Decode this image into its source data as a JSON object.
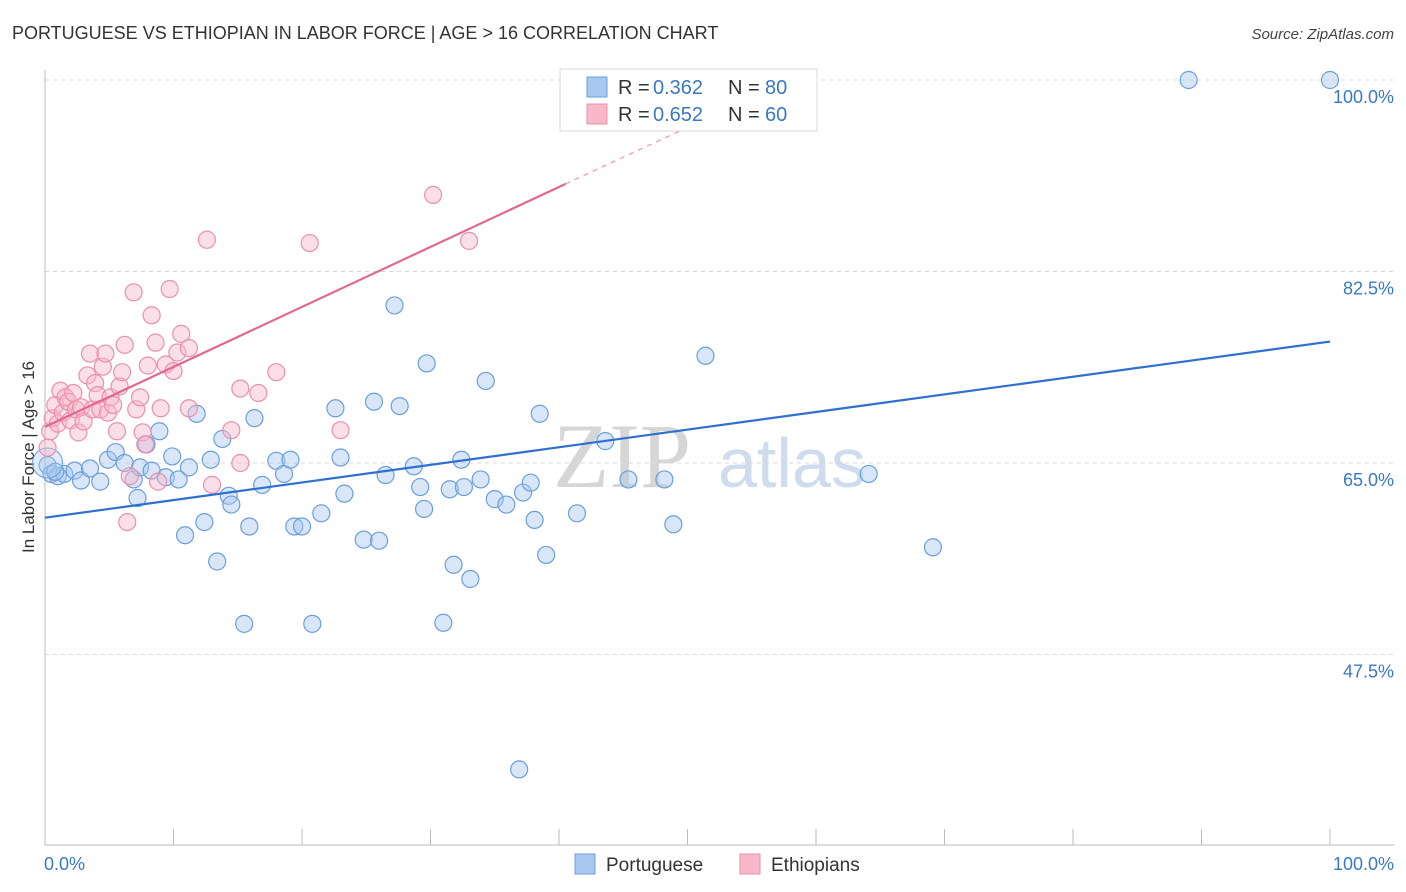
{
  "chart_data": {
    "type": "scatter",
    "title": "PORTUGUESE VS ETHIOPIAN IN LABOR FORCE | AGE > 16 CORRELATION CHART",
    "source": "Source: ZipAtlas.com",
    "xlabel": "",
    "ylabel": "In Labor Force | Age > 16",
    "xlim": [
      0,
      100
    ],
    "ylim": [
      30,
      102
    ],
    "x_tick_labels": [
      "0.0%",
      "100.0%"
    ],
    "y_ticks": [
      {
        "value": 100,
        "label": "100.0%"
      },
      {
        "value": 82.5,
        "label": "82.5%"
      },
      {
        "value": 65,
        "label": "65.0%"
      },
      {
        "value": 47.5,
        "label": "47.5%"
      }
    ],
    "watermark": {
      "zip": "ZIP",
      "atlas": "atlas"
    },
    "legend": {
      "r_label": "R =",
      "n_label": "N =",
      "entries": [
        {
          "name": "Portuguese",
          "r": "0.362",
          "n": "80"
        },
        {
          "name": "Ethiopians",
          "r": "0.652",
          "n": "60"
        }
      ]
    },
    "colors": {
      "portuguese_fill": "#a9c8f0",
      "portuguese_stroke": "#6a9fdb",
      "portuguese_line": "#2f6fce",
      "ethiopian_fill": "#f7b8cb",
      "ethiopian_stroke": "#ec8fab",
      "ethiopian_line": "#e2688f",
      "axis_blue": "#3b78c4"
    },
    "series": [
      {
        "name": "Portuguese",
        "trend": {
          "x0": 0,
          "y0": 60.0,
          "x1": 100,
          "y1": 76.1
        },
        "points": [
          [
            0.2,
            64.8
          ],
          [
            0.5,
            64.0
          ],
          [
            1.0,
            63.8
          ],
          [
            1.5,
            64.0
          ],
          [
            2.3,
            64.3
          ],
          [
            2.8,
            63.4
          ],
          [
            3.5,
            64.5
          ],
          [
            4.3,
            63.3
          ],
          [
            4.9,
            65.3
          ],
          [
            5.5,
            66.0
          ],
          [
            6.2,
            65.0
          ],
          [
            6.9,
            63.5
          ],
          [
            7.2,
            61.8
          ],
          [
            7.4,
            64.6
          ],
          [
            7.9,
            66.7
          ],
          [
            8.3,
            64.3
          ],
          [
            8.9,
            67.9
          ],
          [
            9.4,
            63.7
          ],
          [
            9.9,
            65.6
          ],
          [
            10.4,
            63.5
          ],
          [
            10.9,
            58.4
          ],
          [
            11.2,
            64.6
          ],
          [
            11.8,
            69.5
          ],
          [
            12.4,
            59.6
          ],
          [
            12.9,
            65.3
          ],
          [
            13.4,
            56.0
          ],
          [
            13.8,
            67.2
          ],
          [
            14.3,
            62.0
          ],
          [
            14.5,
            61.2
          ],
          [
            15.5,
            50.3
          ],
          [
            15.9,
            59.2
          ],
          [
            16.3,
            69.1
          ],
          [
            16.9,
            63.0
          ],
          [
            18.0,
            65.2
          ],
          [
            18.6,
            64.0
          ],
          [
            19.1,
            65.3
          ],
          [
            19.4,
            59.2
          ],
          [
            20.0,
            59.2
          ],
          [
            20.8,
            50.3
          ],
          [
            21.5,
            60.4
          ],
          [
            22.6,
            70.0
          ],
          [
            23.0,
            65.5
          ],
          [
            23.3,
            62.2
          ],
          [
            24.8,
            58.0
          ],
          [
            25.6,
            70.6
          ],
          [
            26.0,
            57.9
          ],
          [
            26.5,
            63.9
          ],
          [
            27.2,
            79.4
          ],
          [
            27.6,
            70.2
          ],
          [
            28.7,
            64.7
          ],
          [
            29.2,
            62.8
          ],
          [
            29.5,
            60.8
          ],
          [
            29.7,
            74.1
          ],
          [
            31.0,
            50.4
          ],
          [
            31.5,
            62.6
          ],
          [
            31.8,
            55.7
          ],
          [
            32.4,
            65.3
          ],
          [
            32.6,
            62.8
          ],
          [
            33.1,
            54.4
          ],
          [
            33.9,
            63.5
          ],
          [
            34.3,
            72.5
          ],
          [
            35.0,
            61.7
          ],
          [
            35.9,
            61.2
          ],
          [
            36.9,
            37.0
          ],
          [
            37.2,
            62.3
          ],
          [
            37.8,
            63.2
          ],
          [
            38.1,
            59.8
          ],
          [
            38.5,
            69.5
          ],
          [
            39.0,
            56.6
          ],
          [
            41.4,
            60.4
          ],
          [
            43.6,
            67.0
          ],
          [
            45.4,
            63.5
          ],
          [
            48.2,
            63.5
          ],
          [
            48.9,
            59.4
          ],
          [
            51.4,
            74.8
          ],
          [
            64.1,
            64.0
          ],
          [
            69.1,
            57.3
          ],
          [
            89.0,
            100.0
          ],
          [
            100.0,
            100.0
          ],
          [
            0.8,
            64.2
          ]
        ]
      },
      {
        "name": "Ethiopians",
        "trend": {
          "x0": 0,
          "y0": 68.3,
          "x1": 40.5,
          "y1": 90.5,
          "dash_to": {
            "x": 53.0,
            "y": 97.3
          }
        },
        "points": [
          [
            0.2,
            66.4
          ],
          [
            0.4,
            67.9
          ],
          [
            0.6,
            69.1
          ],
          [
            0.8,
            70.3
          ],
          [
            1.0,
            68.6
          ],
          [
            1.2,
            71.6
          ],
          [
            1.4,
            69.6
          ],
          [
            1.6,
            71.0
          ],
          [
            1.8,
            70.6
          ],
          [
            2.0,
            68.9
          ],
          [
            2.2,
            71.4
          ],
          [
            2.4,
            69.9
          ],
          [
            2.6,
            67.8
          ],
          [
            2.8,
            70.1
          ],
          [
            3.0,
            68.8
          ],
          [
            3.3,
            73.0
          ],
          [
            3.5,
            75.0
          ],
          [
            3.7,
            69.9
          ],
          [
            3.9,
            72.3
          ],
          [
            4.1,
            71.2
          ],
          [
            4.3,
            69.9
          ],
          [
            4.5,
            73.8
          ],
          [
            4.7,
            75.0
          ],
          [
            4.9,
            69.6
          ],
          [
            5.1,
            71.0
          ],
          [
            5.3,
            70.3
          ],
          [
            5.6,
            67.9
          ],
          [
            5.8,
            72.0
          ],
          [
            6.0,
            73.3
          ],
          [
            6.2,
            75.8
          ],
          [
            6.4,
            59.6
          ],
          [
            6.6,
            63.8
          ],
          [
            6.9,
            80.6
          ],
          [
            7.1,
            69.9
          ],
          [
            7.4,
            71.0
          ],
          [
            7.6,
            67.8
          ],
          [
            7.8,
            66.7
          ],
          [
            8.0,
            73.9
          ],
          [
            8.3,
            78.5
          ],
          [
            8.6,
            76.0
          ],
          [
            8.8,
            63.3
          ],
          [
            9.0,
            70.0
          ],
          [
            9.4,
            74.0
          ],
          [
            9.7,
            80.9
          ],
          [
            10.0,
            73.4
          ],
          [
            10.3,
            75.1
          ],
          [
            10.6,
            76.8
          ],
          [
            11.2,
            70.0
          ],
          [
            12.6,
            85.4
          ],
          [
            13.0,
            63.0
          ],
          [
            14.5,
            68.0
          ],
          [
            15.2,
            71.8
          ],
          [
            16.6,
            71.4
          ],
          [
            18.0,
            73.3
          ],
          [
            20.6,
            85.1
          ],
          [
            23.0,
            68.0
          ],
          [
            30.2,
            89.5
          ],
          [
            33.0,
            85.3
          ],
          [
            15.2,
            65.0
          ],
          [
            11.2,
            75.5
          ]
        ]
      }
    ]
  }
}
